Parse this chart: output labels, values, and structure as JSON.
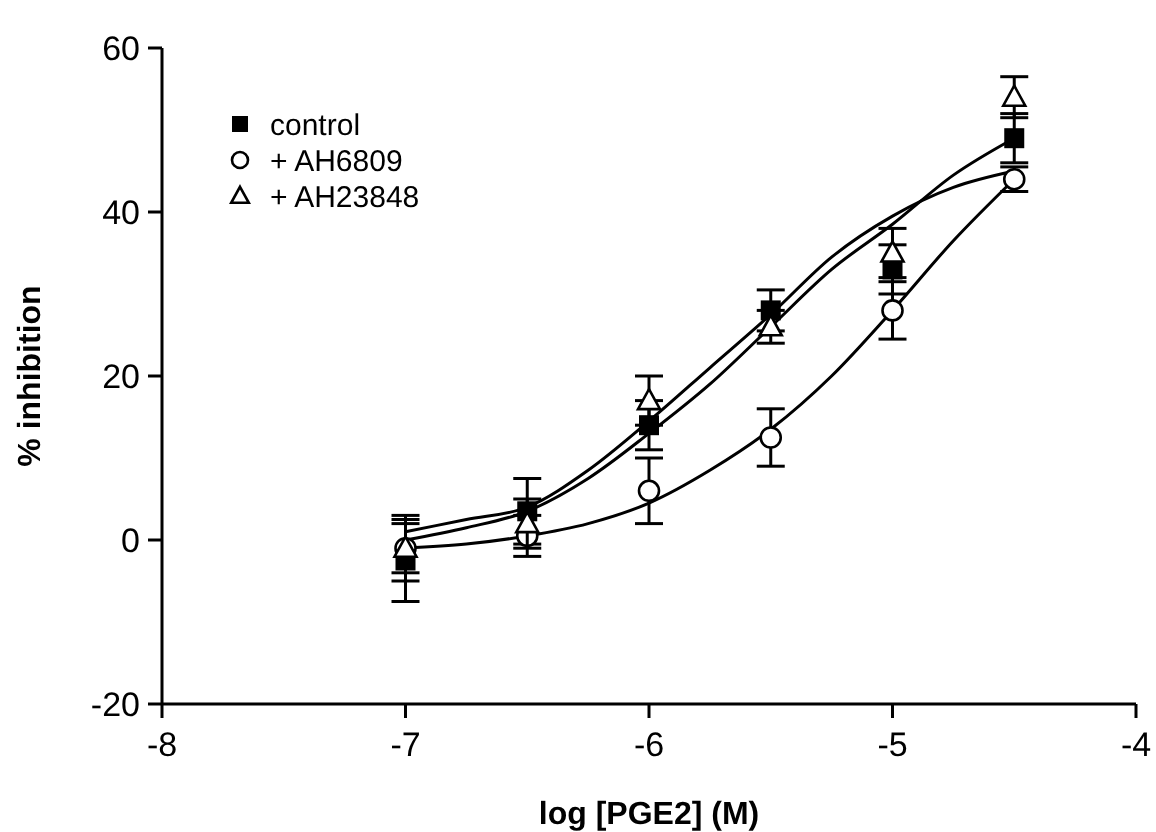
{
  "chart_data": {
    "type": "scatter",
    "xlabel": "log [PGE2] (M)",
    "ylabel": "% inhibition",
    "xlim": [
      -8,
      -4
    ],
    "xticks": [
      -8,
      -7,
      -6,
      -5,
      -4
    ],
    "ylim": [
      -20,
      60
    ],
    "yticks": [
      -20,
      0,
      20,
      40,
      60
    ],
    "grid": false,
    "legend": "top left",
    "series": [
      {
        "type": "line",
        "color": "#000000",
        "marker": "none",
        "x": [
          -7,
          -6.75,
          -6.5,
          -6.25,
          -6,
          -5.75,
          -5.5,
          -5.25,
          -5,
          -4.75,
          -4.5
        ],
        "values": [
          0,
          1.5,
          3.5,
          7.5,
          13,
          19,
          26,
          33,
          38.5,
          44.5,
          49
        ]
      },
      {
        "type": "line",
        "color": "#000000",
        "marker": "none",
        "x": [
          -7,
          -6.75,
          -6.5,
          -6.25,
          -6,
          -5.75,
          -5.5,
          -5.25,
          -5,
          -4.75,
          -4.5
        ],
        "values": [
          1,
          2.5,
          4,
          8.5,
          14.5,
          21,
          27.5,
          34.5,
          39.5,
          43,
          45
        ]
      },
      {
        "type": "line",
        "color": "#000000",
        "marker": "none",
        "x": [
          -7,
          -6.75,
          -6.5,
          -6.25,
          -6,
          -5.75,
          -5.5,
          -5.25,
          -5,
          -4.75,
          -4.5
        ],
        "values": [
          -1,
          -0.5,
          0.5,
          2,
          4.5,
          8.5,
          13.5,
          20,
          28,
          36.5,
          44
        ]
      },
      {
        "name": "control",
        "color": "#000000",
        "marker": "square",
        "x": [
          -7,
          -6.5,
          -6,
          -5.5,
          -5,
          -4.5
        ],
        "values": [
          -2.5,
          3.5,
          14,
          28,
          33,
          49
        ],
        "errors": [
          5,
          4,
          3,
          2.5,
          3,
          3
        ]
      },
      {
        "name": "+ AH6809",
        "color": "#000000",
        "marker": "circle",
        "x": [
          -7,
          -6.5,
          -6,
          -5.5,
          -5,
          -4.5
        ],
        "values": [
          -1,
          0.5,
          6,
          12.5,
          28,
          44
        ],
        "errors": [
          4,
          2.5,
          4,
          3.5,
          3.5,
          1.5
        ]
      },
      {
        "name": "+ AH23848",
        "color": "#000000",
        "marker": "triangle",
        "x": [
          -7,
          -6.5,
          -6,
          -5.5,
          -5,
          -4.5
        ],
        "values": [
          -1,
          2,
          17,
          26,
          35,
          54
        ],
        "errors": [
          3,
          3,
          3,
          2,
          3,
          2.5
        ]
      }
    ]
  }
}
